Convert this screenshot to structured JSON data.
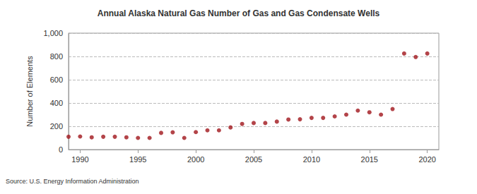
{
  "chart_data": {
    "type": "scatter",
    "title": "Annual Alaska Natural Gas Number of Gas and Gas Condensate Wells",
    "y_label": "Number of Elements",
    "source": "Source: U.S. Energy Information Administration",
    "x": [
      1989,
      1990,
      1991,
      1992,
      1993,
      1994,
      1995,
      1996,
      1997,
      1998,
      1999,
      2000,
      2001,
      2002,
      2003,
      2004,
      2005,
      2006,
      2007,
      2008,
      2009,
      2010,
      2011,
      2012,
      2013,
      2014,
      2015,
      2016,
      2017,
      2018,
      2019,
      2020
    ],
    "values": [
      110,
      112,
      105,
      110,
      110,
      105,
      100,
      100,
      143,
      148,
      100,
      150,
      165,
      165,
      190,
      220,
      228,
      228,
      240,
      258,
      260,
      272,
      272,
      285,
      300,
      335,
      320,
      300,
      348,
      825,
      795,
      825
    ],
    "color": "#a0151c",
    "xlim": [
      1989,
      2021
    ],
    "xticks": [
      1990,
      1995,
      2000,
      2005,
      2010,
      2015,
      2020
    ],
    "ylim": [
      0,
      1000
    ],
    "yticks": [
      0,
      200,
      400,
      600,
      800,
      {
        "value": 1000,
        "label": "1,000"
      }
    ],
    "grid": true
  }
}
